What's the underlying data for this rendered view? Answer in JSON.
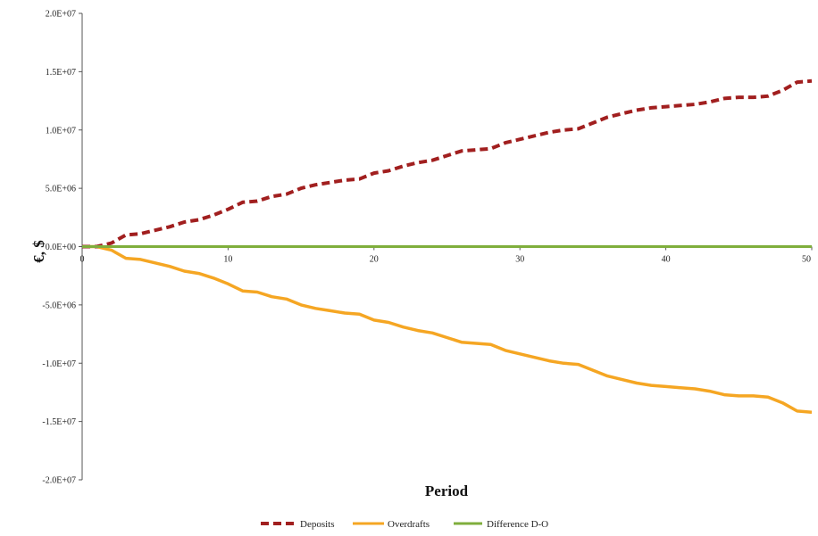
{
  "chart_data": {
    "type": "line",
    "xlabel": "Period",
    "ylabel": "€, $",
    "xlim": [
      0,
      50
    ],
    "ylim": [
      -20000000,
      20000000
    ],
    "x_ticks": [
      0,
      10,
      20,
      30,
      40,
      50
    ],
    "y_ticks": [
      {
        "value": 20000000,
        "label": "2.0E+07"
      },
      {
        "value": 15000000,
        "label": "1.5E+07"
      },
      {
        "value": 10000000,
        "label": "1.0E+07"
      },
      {
        "value": 5000000,
        "label": "5.0E+06"
      },
      {
        "value": 0,
        "label": "0.0E+00"
      },
      {
        "value": -5000000,
        "label": "-5.0E+06"
      },
      {
        "value": -10000000,
        "label": "-1.0E+07"
      },
      {
        "value": -15000000,
        "label": "-1.5E+07"
      },
      {
        "value": -20000000,
        "label": "-2.0E+07"
      }
    ],
    "grid": false,
    "legend_position": "bottom",
    "x": [
      0,
      1,
      2,
      3,
      4,
      5,
      6,
      7,
      8,
      9,
      10,
      11,
      12,
      13,
      14,
      15,
      16,
      17,
      18,
      19,
      20,
      21,
      22,
      23,
      24,
      25,
      26,
      27,
      28,
      29,
      30,
      31,
      32,
      33,
      34,
      35,
      36,
      37,
      38,
      39,
      40,
      41,
      42,
      43,
      44,
      45,
      46,
      47,
      48,
      49,
      50
    ],
    "series": [
      {
        "name": "Deposits",
        "color": "#a11f1f",
        "style": "dashed",
        "values": [
          0,
          0,
          300000,
          1000000,
          1100000,
          1400000,
          1700000,
          2100000,
          2300000,
          2700000,
          3200000,
          3800000,
          3900000,
          4300000,
          4500000,
          5000000,
          5300000,
          5500000,
          5700000,
          5800000,
          6300000,
          6500000,
          6900000,
          7200000,
          7400000,
          7800000,
          8200000,
          8300000,
          8400000,
          8900000,
          9200000,
          9500000,
          9800000,
          10000000,
          10100000,
          10600000,
          11100000,
          11400000,
          11700000,
          11900000,
          12000000,
          12100000,
          12200000,
          12400000,
          12700000,
          12800000,
          12800000,
          12900000,
          13400000,
          14100000,
          14200000
        ]
      },
      {
        "name": "Overdrafts",
        "color": "#f5a623",
        "style": "solid",
        "values": [
          0,
          0,
          -300000,
          -1000000,
          -1100000,
          -1400000,
          -1700000,
          -2100000,
          -2300000,
          -2700000,
          -3200000,
          -3800000,
          -3900000,
          -4300000,
          -4500000,
          -5000000,
          -5300000,
          -5500000,
          -5700000,
          -5800000,
          -6300000,
          -6500000,
          -6900000,
          -7200000,
          -7400000,
          -7800000,
          -8200000,
          -8300000,
          -8400000,
          -8900000,
          -9200000,
          -9500000,
          -9800000,
          -10000000,
          -10100000,
          -10600000,
          -11100000,
          -11400000,
          -11700000,
          -11900000,
          -12000000,
          -12100000,
          -12200000,
          -12400000,
          -12700000,
          -12800000,
          -12800000,
          -12900000,
          -13400000,
          -14100000,
          -14200000
        ]
      },
      {
        "name": "Difference D-O",
        "color": "#7fae3c",
        "style": "solid",
        "values": [
          0,
          0,
          0,
          0,
          0,
          0,
          0,
          0,
          0,
          0,
          0,
          0,
          0,
          0,
          0,
          0,
          0,
          0,
          0,
          0,
          0,
          0,
          0,
          0,
          0,
          0,
          0,
          0,
          0,
          0,
          0,
          0,
          0,
          0,
          0,
          0,
          0,
          0,
          0,
          0,
          0,
          0,
          0,
          0,
          0,
          0,
          0,
          0,
          0,
          0,
          0
        ]
      }
    ]
  }
}
